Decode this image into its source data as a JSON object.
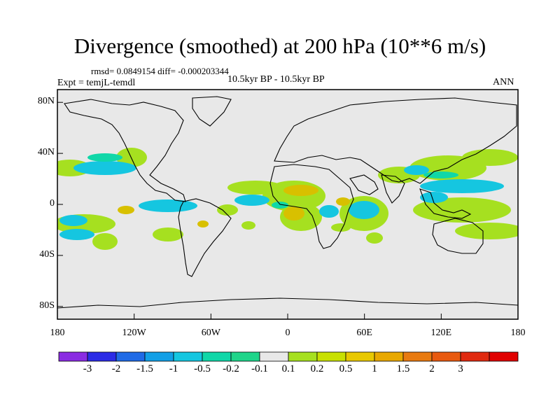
{
  "figure": {
    "title": "Divergence (smoothed) at 200 hPa (10**6 m/s)",
    "stats": "rmsd= 0.0849154 diff= -0.000203344",
    "experiment": "Expt = temjL-temdl",
    "period": "10.5kyr BP - 10.5kyr BP",
    "season": "ANN"
  },
  "map": {
    "lat_axis": [
      {
        "label": "80N",
        "lat": 80
      },
      {
        "label": "40N",
        "lat": 40
      },
      {
        "label": "0",
        "lat": 0
      },
      {
        "label": "40S",
        "lat": -40
      },
      {
        "label": "80S",
        "lat": -80
      }
    ],
    "lon_axis": [
      {
        "label": "180",
        "lon": -180
      },
      {
        "label": "120W",
        "lon": -120
      },
      {
        "label": "60W",
        "lon": -60
      },
      {
        "label": "0",
        "lon": 0
      },
      {
        "label": "60E",
        "lon": 60
      },
      {
        "label": "120E",
        "lon": 120
      },
      {
        "label": "180",
        "lon": 180
      }
    ]
  },
  "colorbar": {
    "colors": [
      "#8a2be2",
      "#2b2be6",
      "#1f6ae6",
      "#129fe6",
      "#15c6e0",
      "#10d7a8",
      "#1fd58a",
      "#e8e8e8",
      "#a6e020",
      "#c8e000",
      "#e8c800",
      "#e8a800",
      "#e87a10",
      "#e85a10",
      "#e02a10",
      "#e00000"
    ],
    "labels": [
      "-3",
      "-2",
      "-1.5",
      "-1",
      "-0.5",
      "-0.2",
      "-0.1",
      "0.1",
      "0.2",
      "0.5",
      "1",
      "1.5",
      "2",
      "3"
    ]
  }
}
